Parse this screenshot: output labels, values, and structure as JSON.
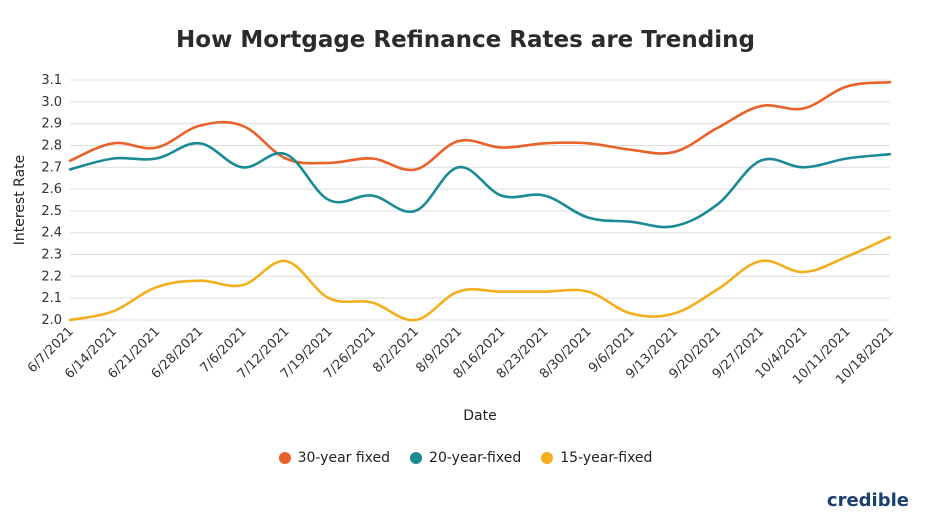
{
  "chart_data": {
    "type": "line",
    "title": "How Mortgage Refinance Rates are Trending",
    "xlabel": "Date",
    "ylabel": "Interest Rate",
    "ylim": [
      2.0,
      3.1
    ],
    "yticks": [
      "3.1",
      "3.0",
      "2.9",
      "2.8",
      "2.7",
      "2.6",
      "2.5",
      "2.4",
      "2.3",
      "2.2",
      "2.1",
      "2.0"
    ],
    "grid": true,
    "legend_position": "bottom",
    "categories": [
      "6/7/2021",
      "6/14/2021",
      "6/21/2021",
      "6/28/2021",
      "7/6/2021",
      "7/12/2021",
      "7/19/2021",
      "7/26/2021",
      "8/2/2021",
      "8/9/2021",
      "8/16/2021",
      "8/23/2021",
      "8/30/2021",
      "9/6/2021",
      "9/13/2021",
      "9/20/2021",
      "9/27/2021",
      "10/4/2021",
      "10/11/2021",
      "10/18/2021"
    ],
    "series": [
      {
        "name": "30-year fixed",
        "color": "#e8622a",
        "values": [
          2.73,
          2.81,
          2.79,
          2.89,
          2.89,
          2.74,
          2.72,
          2.74,
          2.69,
          2.82,
          2.79,
          2.81,
          2.81,
          2.78,
          2.77,
          2.88,
          2.98,
          2.97,
          3.07,
          3.09
        ]
      },
      {
        "name": "20-year-fixed",
        "color": "#1a8a96",
        "values": [
          2.69,
          2.74,
          2.74,
          2.81,
          2.7,
          2.76,
          2.55,
          2.57,
          2.5,
          2.7,
          2.57,
          2.57,
          2.47,
          2.45,
          2.43,
          2.53,
          2.73,
          2.7,
          2.74,
          2.76
        ]
      },
      {
        "name": "15-year-fixed",
        "color": "#f5ae1b",
        "values": [
          2.0,
          2.04,
          2.15,
          2.18,
          2.16,
          2.27,
          2.1,
          2.08,
          2.0,
          2.13,
          2.13,
          2.13,
          2.13,
          2.03,
          2.03,
          2.14,
          2.27,
          2.22,
          2.29,
          2.38
        ]
      }
    ]
  },
  "brand": "credible"
}
